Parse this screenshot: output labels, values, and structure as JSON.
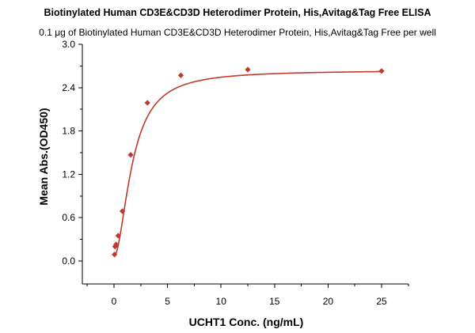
{
  "chart_data": {
    "type": "scatter",
    "title": "Biotinylated Human CD3E&CD3D Heterodimer Protein, His,Avitag&Tag Free ELISA",
    "subtitle": "0.1 μg of Biotinylated Human CD3E&CD3D Heterodimer Protein, His,Avitag&Tag Free per well",
    "xlabel": "UCHT1 Conc. (ng/mL)",
    "ylabel": "Mean Abs.(OD450)",
    "xlim": [
      -3,
      27.5
    ],
    "ylim": [
      -0.3,
      3.0
    ],
    "xticks": [
      0,
      5,
      10,
      15,
      20,
      25
    ],
    "yticks": [
      0.0,
      0.6,
      1.2,
      1.8,
      2.4,
      3.0
    ],
    "xtick_labels": [
      "0",
      "5",
      "10",
      "15",
      "20",
      "25"
    ],
    "ytick_labels": [
      "0.0",
      "0.6",
      "1.2",
      "1.8",
      "2.4",
      "3.0"
    ],
    "grid": false,
    "color": "#c0392b",
    "series": [
      {
        "marker": "diamond",
        "fit": "logistic",
        "x": [
          0.049,
          0.098,
          0.195,
          0.39,
          0.78,
          1.56,
          3.125,
          6.25,
          12.5,
          25
        ],
        "y": [
          0.09,
          0.2,
          0.23,
          0.35,
          0.69,
          1.47,
          2.19,
          2.57,
          2.65,
          2.63
        ]
      }
    ]
  }
}
